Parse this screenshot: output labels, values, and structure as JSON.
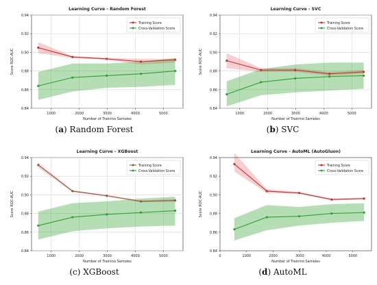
{
  "colors": {
    "training": "#d62728",
    "validation": "#2ca02c",
    "xgb_training": "#8b5a2b"
  },
  "legend": {
    "training": "Training Score",
    "validation": "Cross-Validation Score"
  },
  "panels": [
    {
      "letter": "a",
      "caption_text": "Random Forest"
    },
    {
      "letter": "b",
      "caption_text": "SVC"
    },
    {
      "letter": "c",
      "caption_text": "XGBoost"
    },
    {
      "letter": "d",
      "caption_text": "AutoML"
    }
  ],
  "chart_data": [
    {
      "type": "line",
      "title": "Learning Curve - Random Forest",
      "xlabel": "Number of Training Samples",
      "ylabel": "Score ROC-AUC",
      "xlim": [
        300,
        5700
      ],
      "ylim": [
        0.84,
        0.94
      ],
      "xticks": [
        1000,
        2000,
        3000,
        4000,
        5000
      ],
      "yticks": [
        0.84,
        0.86,
        0.88,
        0.9,
        0.92,
        0.94
      ],
      "grid": true,
      "legend_position": "top-right",
      "x": [
        540,
        1760,
        2980,
        4200,
        5420
      ],
      "series": [
        {
          "name": "Training Score",
          "values": [
            0.905,
            0.895,
            0.893,
            0.89,
            0.892
          ],
          "lower": [
            0.899,
            0.894,
            0.892,
            0.887,
            0.889
          ],
          "upper": [
            0.911,
            0.896,
            0.894,
            0.893,
            0.893
          ]
        },
        {
          "name": "Cross-Validation Score",
          "values": [
            0.864,
            0.873,
            0.875,
            0.877,
            0.88
          ],
          "lower": [
            0.849,
            0.858,
            0.862,
            0.863,
            0.865
          ],
          "upper": [
            0.879,
            0.888,
            0.888,
            0.89,
            0.894
          ]
        }
      ]
    },
    {
      "type": "line",
      "title": "Learning Curve - SVC",
      "xlabel": "Number of Training Samples",
      "ylabel": "Score ROC-AUC",
      "xlim": [
        300,
        5700
      ],
      "ylim": [
        0.84,
        0.94
      ],
      "xticks": [
        1000,
        2000,
        3000,
        4000,
        5000
      ],
      "yticks": [
        0.84,
        0.86,
        0.88,
        0.9,
        0.92,
        0.94
      ],
      "grid": true,
      "legend_position": "top-right",
      "x": [
        540,
        1760,
        2980,
        4200,
        5420
      ],
      "series": [
        {
          "name": "Training Score",
          "values": [
            0.891,
            0.881,
            0.881,
            0.877,
            0.879
          ],
          "lower": [
            0.883,
            0.879,
            0.879,
            0.875,
            0.877
          ],
          "upper": [
            0.899,
            0.883,
            0.883,
            0.879,
            0.881
          ]
        },
        {
          "name": "Cross-Validation Score",
          "values": [
            0.855,
            0.868,
            0.872,
            0.874,
            0.875
          ],
          "lower": [
            0.842,
            0.854,
            0.857,
            0.859,
            0.861
          ],
          "upper": [
            0.869,
            0.882,
            0.887,
            0.889,
            0.889
          ]
        }
      ]
    },
    {
      "type": "line",
      "title": "Learning Curve - XGBoost",
      "xlabel": "Number of Training Samples",
      "ylabel": "Score ROC-AUC",
      "xlim": [
        300,
        5700
      ],
      "ylim": [
        0.84,
        0.94
      ],
      "xticks": [
        1000,
        2000,
        3000,
        4000,
        5000
      ],
      "yticks": [
        0.84,
        0.86,
        0.88,
        0.9,
        0.92,
        0.94
      ],
      "grid": true,
      "legend_position": "top-right",
      "x": [
        540,
        1760,
        2980,
        4200,
        5420
      ],
      "series": [
        {
          "name": "Training Score",
          "values": [
            0.932,
            0.904,
            0.899,
            0.893,
            0.894
          ],
          "lower": [
            0.929,
            0.903,
            0.898,
            0.892,
            0.892
          ],
          "upper": [
            0.935,
            0.905,
            0.9,
            0.894,
            0.896
          ]
        },
        {
          "name": "Cross-Validation Score",
          "values": [
            0.867,
            0.876,
            0.879,
            0.881,
            0.883
          ],
          "lower": [
            0.852,
            0.861,
            0.864,
            0.866,
            0.867
          ],
          "upper": [
            0.882,
            0.891,
            0.893,
            0.896,
            0.898
          ]
        }
      ]
    },
    {
      "type": "line",
      "title": "Learning Curve - AutoML (AutoGluon)",
      "xlabel": "Number of Training Samples",
      "ylabel": "Score ROC-AUC",
      "xlim": [
        0,
        5700
      ],
      "ylim": [
        0.84,
        0.94
      ],
      "xticks": [
        0,
        1000,
        2000,
        3000,
        4000,
        5000
      ],
      "yticks": [
        0.84,
        0.86,
        0.88,
        0.9,
        0.92,
        0.94
      ],
      "grid": false,
      "legend_position": "top-right",
      "x": [
        540,
        1760,
        2980,
        4200,
        5420
      ],
      "series": [
        {
          "name": "Training Score",
          "values": [
            0.933,
            0.904,
            0.902,
            0.895,
            0.896
          ],
          "lower": [
            0.925,
            0.902,
            0.901,
            0.894,
            0.895
          ],
          "upper": [
            0.945,
            0.906,
            0.903,
            0.896,
            0.897
          ]
        },
        {
          "name": "Cross-Validation Score",
          "values": [
            0.863,
            0.876,
            0.877,
            0.88,
            0.881
          ],
          "lower": [
            0.851,
            0.862,
            0.867,
            0.87,
            0.872
          ],
          "upper": [
            0.875,
            0.889,
            0.887,
            0.89,
            0.891
          ]
        }
      ]
    }
  ]
}
